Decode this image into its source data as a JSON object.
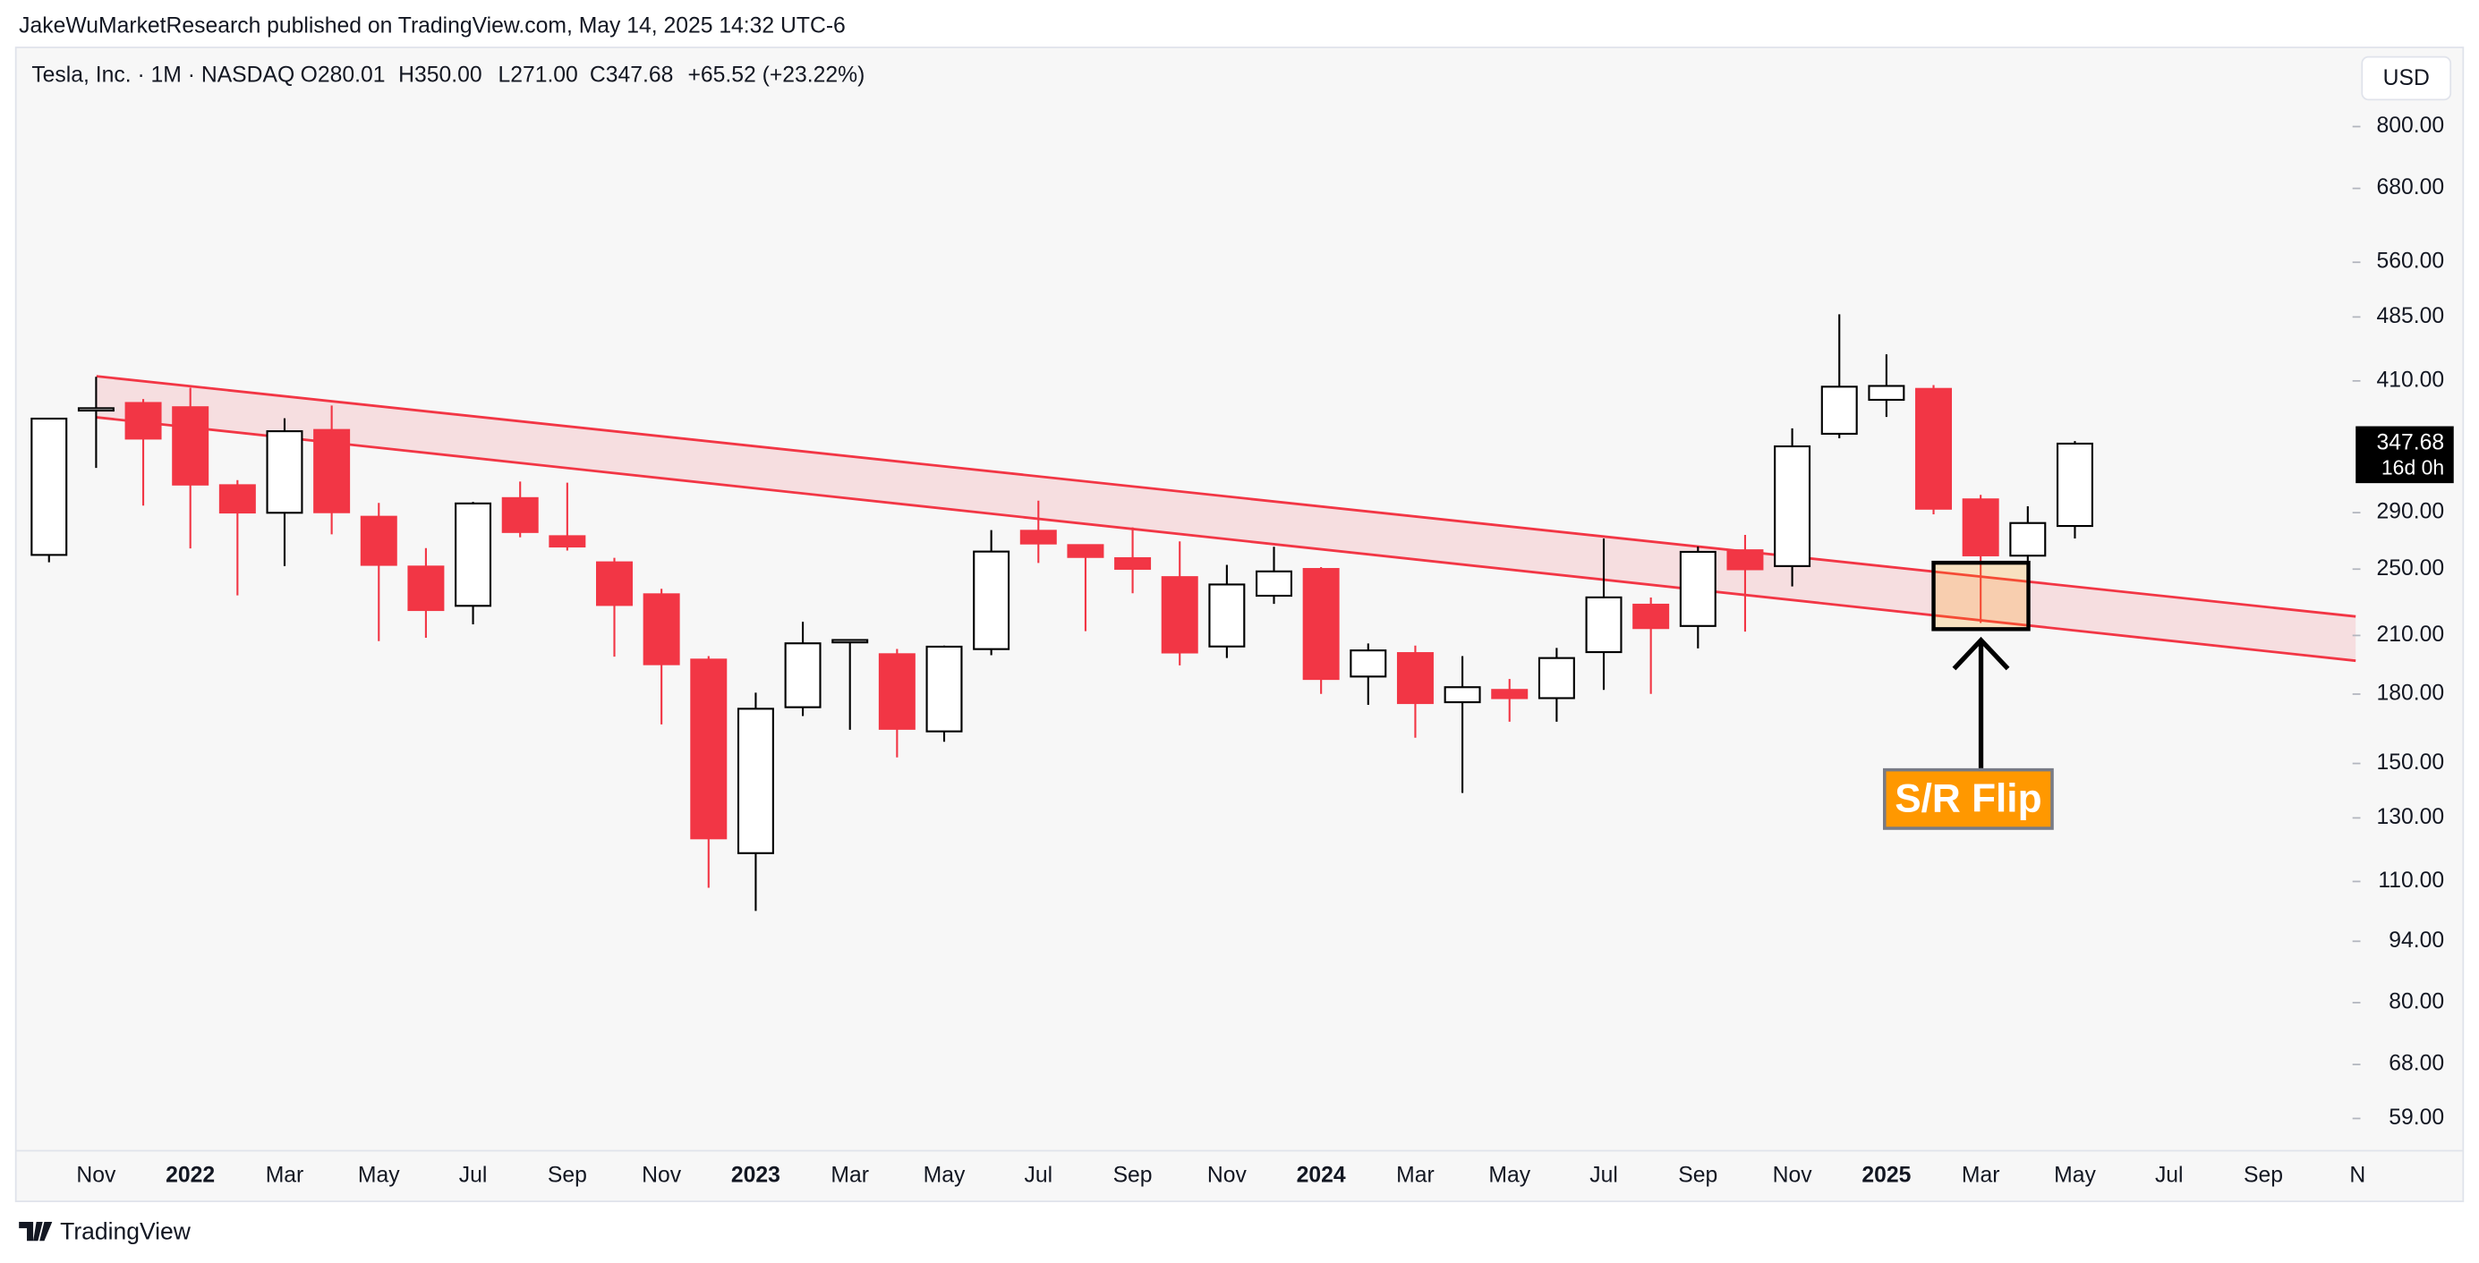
{
  "header": {
    "attribution": "JakeWuMarketResearch published on TradingView.com, May 14, 2025 14:32 UTC-6",
    "symbol": "Tesla, Inc. · 1M · NASDAQ",
    "ohlc": [
      "O280.01",
      "H350.00",
      "L271.00",
      "C347.68",
      "+65.52 (+23.22%)"
    ]
  },
  "currency": "USD",
  "chart_data": {
    "type": "candlestick",
    "log_scale": true,
    "up_color": "#ffffff",
    "down_color": "#f23645",
    "categories": [
      null,
      "Nov",
      null,
      "2022",
      null,
      "Mar",
      null,
      "May",
      null,
      "Jul",
      null,
      "Sep",
      null,
      "Nov",
      null,
      "2023",
      null,
      "Mar",
      null,
      "May",
      null,
      "Jul",
      null,
      "Sep",
      null,
      "Nov",
      null,
      "2024",
      null,
      "Mar",
      null,
      "May",
      null,
      "Jul",
      null,
      "Sep",
      null,
      "Nov",
      null,
      "2025",
      null,
      "Mar",
      null,
      "May",
      null,
      "Jul",
      null,
      "Sep",
      null,
      "N"
    ],
    "open": [
      259.5,
      381.0,
      386.9,
      382.6,
      311.7,
      289.9,
      360.4,
      286.9,
      251.7,
      227.0,
      301.3,
      272.6,
      254.5,
      234.0,
      197.1,
      118.5,
      173.9,
      206.2,
      199.9,
      163.2,
      202.6,
      276.5,
      266.3,
      257.3,
      244.8,
      204.0,
      233.1,
      250.1,
      188.5,
      200.5,
      176.2,
      182.0,
      178.1,
      201.0,
      227.7,
      215.3,
      262.7,
      252.0,
      356.8,
      390.1,
      401.5,
      300.3,
      259.0,
      280.01,
      null,
      null,
      null,
      null,
      null,
      null
    ],
    "high": [
      371.7,
      414.5,
      390.9,
      402.7,
      315.9,
      371.6,
      384.3,
      297.5,
      264.2,
      298.3,
      314.7,
      313.8,
      257.5,
      237.4,
      198.9,
      180.7,
      217.7,
      207.8,
      202.7,
      204.5,
      277.0,
      299.3,
      266.5,
      279.0,
      268.9,
      252.8,
      265.1,
      251.3,
      205.6,
      204.5,
      198.9,
      187.3,
      203.2,
      271.0,
      232.0,
      265.3,
      273.5,
      361.9,
      488.5,
      439.7,
      405.5,
      303.9,
      294.9,
      350.0,
      null,
      null,
      null,
      null,
      null,
      null
    ],
    "low": [
      254.5,
      326.2,
      295.4,
      264.0,
      233.3,
      252.0,
      273.9,
      206.9,
      208.7,
      216.2,
      271.8,
      262.5,
      198.6,
      166.2,
      108.2,
      101.8,
      169.9,
      163.9,
      152.4,
      158.8,
      199.4,
      254.1,
      212.4,
      234.6,
      194.1,
      197.9,
      228.2,
      180.1,
      175.0,
      160.5,
      138.8,
      167.4,
      167.4,
      182.0,
      180.1,
      203.0,
      212.1,
      238.9,
      352.6,
      373.0,
      288.7,
      217.0,
      252.0,
      271.0,
      null,
      null,
      null,
      null,
      null,
      null
    ],
    "close": [
      371.3,
      381.6,
      352.3,
      312.2,
      290.1,
      359.2,
      290.3,
      252.8,
      224.5,
      297.1,
      275.6,
      265.3,
      227.5,
      194.7,
      123.2,
      173.2,
      205.7,
      207.5,
      164.3,
      203.9,
      261.8,
      267.4,
      258.1,
      250.2,
      200.8,
      240.1,
      248.5,
      187.3,
      201.9,
      175.8,
      183.3,
      178.1,
      197.9,
      232.1,
      214.1,
      261.6,
      249.9,
      345.2,
      403.8,
      404.6,
      293.0,
      259.2,
      282.2,
      347.68,
      null,
      null,
      null,
      null,
      null,
      null
    ],
    "ylim": [
      54.2,
      985
    ],
    "yticks": [
      {
        "value": 59,
        "label": "59.00"
      },
      {
        "value": 68,
        "label": "68.00"
      },
      {
        "value": 80,
        "label": "80.00"
      },
      {
        "value": 94,
        "label": "94.00"
      },
      {
        "value": 110,
        "label": "110.00"
      },
      {
        "value": 130,
        "label": "130.00"
      },
      {
        "value": 150,
        "label": "150.00"
      },
      {
        "value": 180,
        "label": "180.00"
      },
      {
        "value": 210,
        "label": "210.00"
      },
      {
        "value": 250,
        "label": "250.00"
      },
      {
        "value": 290,
        "label": "290.00"
      },
      {
        "value": 410,
        "label": "410.00"
      },
      {
        "value": 485,
        "label": "485.00"
      },
      {
        "value": 560,
        "label": "560.00"
      },
      {
        "value": 680,
        "label": "680.00"
      },
      {
        "value": 800,
        "label": "800.00"
      }
    ],
    "last_price": {
      "value": 347.68,
      "label": "347.68"
    },
    "countdown": "16d 0h",
    "annotation": "S/R Flip"
  },
  "footer": {
    "brand": "TradingView"
  }
}
